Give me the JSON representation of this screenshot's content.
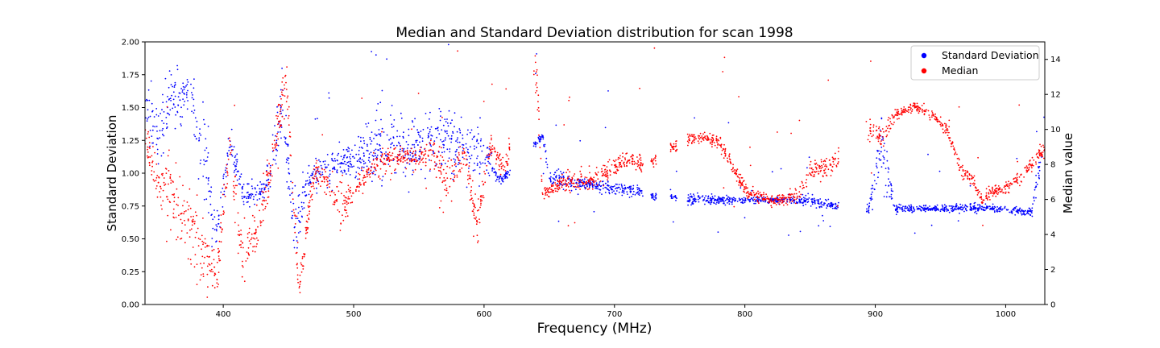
{
  "chart_data": {
    "type": "scatter",
    "title": "Median and Standard Deviation distribution for scan 1998",
    "xlabel": "Frequency (MHz)",
    "ylabel_left": "Standard Deviation",
    "ylabel_right": "Median value",
    "xlim": [
      340,
      1030
    ],
    "ylim_left": [
      0,
      2.0
    ],
    "ylim_right": [
      0,
      15
    ],
    "x_ticks": [
      400,
      500,
      600,
      700,
      800,
      900,
      1000
    ],
    "y_left_ticks": [
      "0.00",
      "0.25",
      "0.50",
      "0.75",
      "1.00",
      "1.25",
      "1.50",
      "1.75",
      "2.00"
    ],
    "y_right_ticks": [
      "0",
      "2",
      "4",
      "6",
      "8",
      "10",
      "12",
      "14"
    ],
    "grid": false,
    "legend": {
      "placement": "top-right",
      "entries": [
        {
          "label": "Standard Deviation",
          "color": "#0000ff"
        },
        {
          "label": "Median",
          "color": "#ff0000"
        }
      ]
    },
    "series": [
      {
        "name": "Standard Deviation",
        "axis": "left",
        "color": "#0000ff",
        "profile": [
          [
            340,
            1.45,
            0.15
          ],
          [
            350,
            1.3,
            0.2
          ],
          [
            360,
            1.55,
            0.2
          ],
          [
            375,
            1.6,
            0.15
          ],
          [
            385,
            1.1,
            0.25
          ],
          [
            395,
            0.55,
            0.15
          ],
          [
            405,
            1.25,
            0.1
          ],
          [
            415,
            0.85,
            0.1
          ],
          [
            425,
            0.82,
            0.08
          ],
          [
            435,
            0.95,
            0.1
          ],
          [
            445,
            1.5,
            0.25
          ],
          [
            455,
            0.55,
            0.2
          ],
          [
            465,
            0.95,
            0.1
          ],
          [
            480,
            1.05,
            0.1
          ],
          [
            500,
            1.1,
            0.1
          ],
          [
            520,
            1.2,
            0.25
          ],
          [
            540,
            1.15,
            0.2
          ],
          [
            560,
            1.3,
            0.2
          ],
          [
            580,
            1.2,
            0.2
          ],
          [
            600,
            1.2,
            0.15
          ],
          [
            610,
            0.97,
            0.03
          ],
          [
            615,
            0.95,
            0.03
          ],
          [
            645,
            1.28,
            0.03
          ],
          [
            650,
            0.97,
            0.05
          ],
          [
            670,
            0.93,
            0.05
          ],
          [
            690,
            0.9,
            0.04
          ],
          [
            710,
            0.87,
            0.04
          ],
          [
            720,
            0.85,
            0.04
          ],
          [
            730,
            0.82,
            0.02
          ],
          [
            745,
            0.82,
            0.02
          ],
          [
            758,
            0.8,
            0.04
          ],
          [
            775,
            0.8,
            0.03
          ],
          [
            800,
            0.79,
            0.02
          ],
          [
            830,
            0.8,
            0.02
          ],
          [
            850,
            0.79,
            0.04
          ],
          [
            870,
            0.75,
            0.03
          ],
          [
            895,
            0.72,
            0.03
          ],
          [
            905,
            1.25,
            0.2
          ],
          [
            915,
            0.73,
            0.03
          ],
          [
            950,
            0.73,
            0.02
          ],
          [
            980,
            0.74,
            0.03
          ],
          [
            1000,
            0.72,
            0.02
          ],
          [
            1020,
            0.7,
            0.03
          ],
          [
            1030,
            1.3,
            0.2
          ]
        ]
      },
      {
        "name": "Median",
        "axis": "right",
        "color": "#ff0000",
        "profile": [
          [
            340,
            9.5,
            1.0
          ],
          [
            350,
            6.8,
            1.2
          ],
          [
            360,
            6.5,
            1.5
          ],
          [
            385,
            3.0,
            2.0
          ],
          [
            395,
            1.5,
            1.0
          ],
          [
            405,
            9.0,
            1.0
          ],
          [
            415,
            2.5,
            2.0
          ],
          [
            425,
            4.0,
            1.5
          ],
          [
            435,
            7.0,
            1.0
          ],
          [
            448,
            13.0,
            1.0
          ],
          [
            458,
            1.0,
            0.8
          ],
          [
            470,
            7.5,
            0.8
          ],
          [
            480,
            7.0,
            0.7
          ],
          [
            490,
            5.5,
            1.0
          ],
          [
            500,
            6.3,
            0.5
          ],
          [
            510,
            7.5,
            0.5
          ],
          [
            520,
            8.0,
            0.5
          ],
          [
            530,
            8.5,
            0.5
          ],
          [
            550,
            8.3,
            0.6
          ],
          [
            560,
            9.0,
            0.6
          ],
          [
            570,
            7.0,
            1.5
          ],
          [
            585,
            8.5,
            0.6
          ],
          [
            595,
            4.5,
            1.0
          ],
          [
            605,
            9.0,
            0.5
          ],
          [
            615,
            7.8,
            0.5
          ],
          [
            640,
            13.5,
            1.5
          ],
          [
            645,
            6.3,
            0.3
          ],
          [
            660,
            7.0,
            0.4
          ],
          [
            680,
            7.0,
            0.5
          ],
          [
            690,
            7.5,
            0.5
          ],
          [
            700,
            7.8,
            0.5
          ],
          [
            710,
            8.3,
            0.5
          ],
          [
            720,
            8.0,
            0.5
          ],
          [
            730,
            8.2,
            0.3
          ],
          [
            745,
            9.0,
            0.3
          ],
          [
            758,
            9.5,
            0.3
          ],
          [
            770,
            9.5,
            0.3
          ],
          [
            780,
            9.3,
            0.3
          ],
          [
            790,
            8.0,
            0.3
          ],
          [
            800,
            6.5,
            0.4
          ],
          [
            810,
            6.2,
            0.3
          ],
          [
            820,
            5.9,
            0.3
          ],
          [
            830,
            6.0,
            0.3
          ],
          [
            840,
            6.3,
            0.4
          ],
          [
            850,
            7.5,
            0.5
          ],
          [
            860,
            7.8,
            0.5
          ],
          [
            870,
            8.2,
            0.5
          ],
          [
            895,
            10.0,
            0.5
          ],
          [
            905,
            9.5,
            0.5
          ],
          [
            915,
            10.8,
            0.3
          ],
          [
            930,
            11.3,
            0.2
          ],
          [
            945,
            10.8,
            0.3
          ],
          [
            955,
            10.0,
            0.3
          ],
          [
            965,
            7.8,
            0.3
          ],
          [
            975,
            7.0,
            0.3
          ],
          [
            982,
            5.9,
            0.2
          ],
          [
            990,
            6.5,
            0.3
          ],
          [
            1000,
            6.6,
            0.3
          ],
          [
            1010,
            7.2,
            0.3
          ],
          [
            1020,
            8.0,
            0.3
          ],
          [
            1030,
            9.0,
            0.4
          ]
        ]
      }
    ]
  }
}
